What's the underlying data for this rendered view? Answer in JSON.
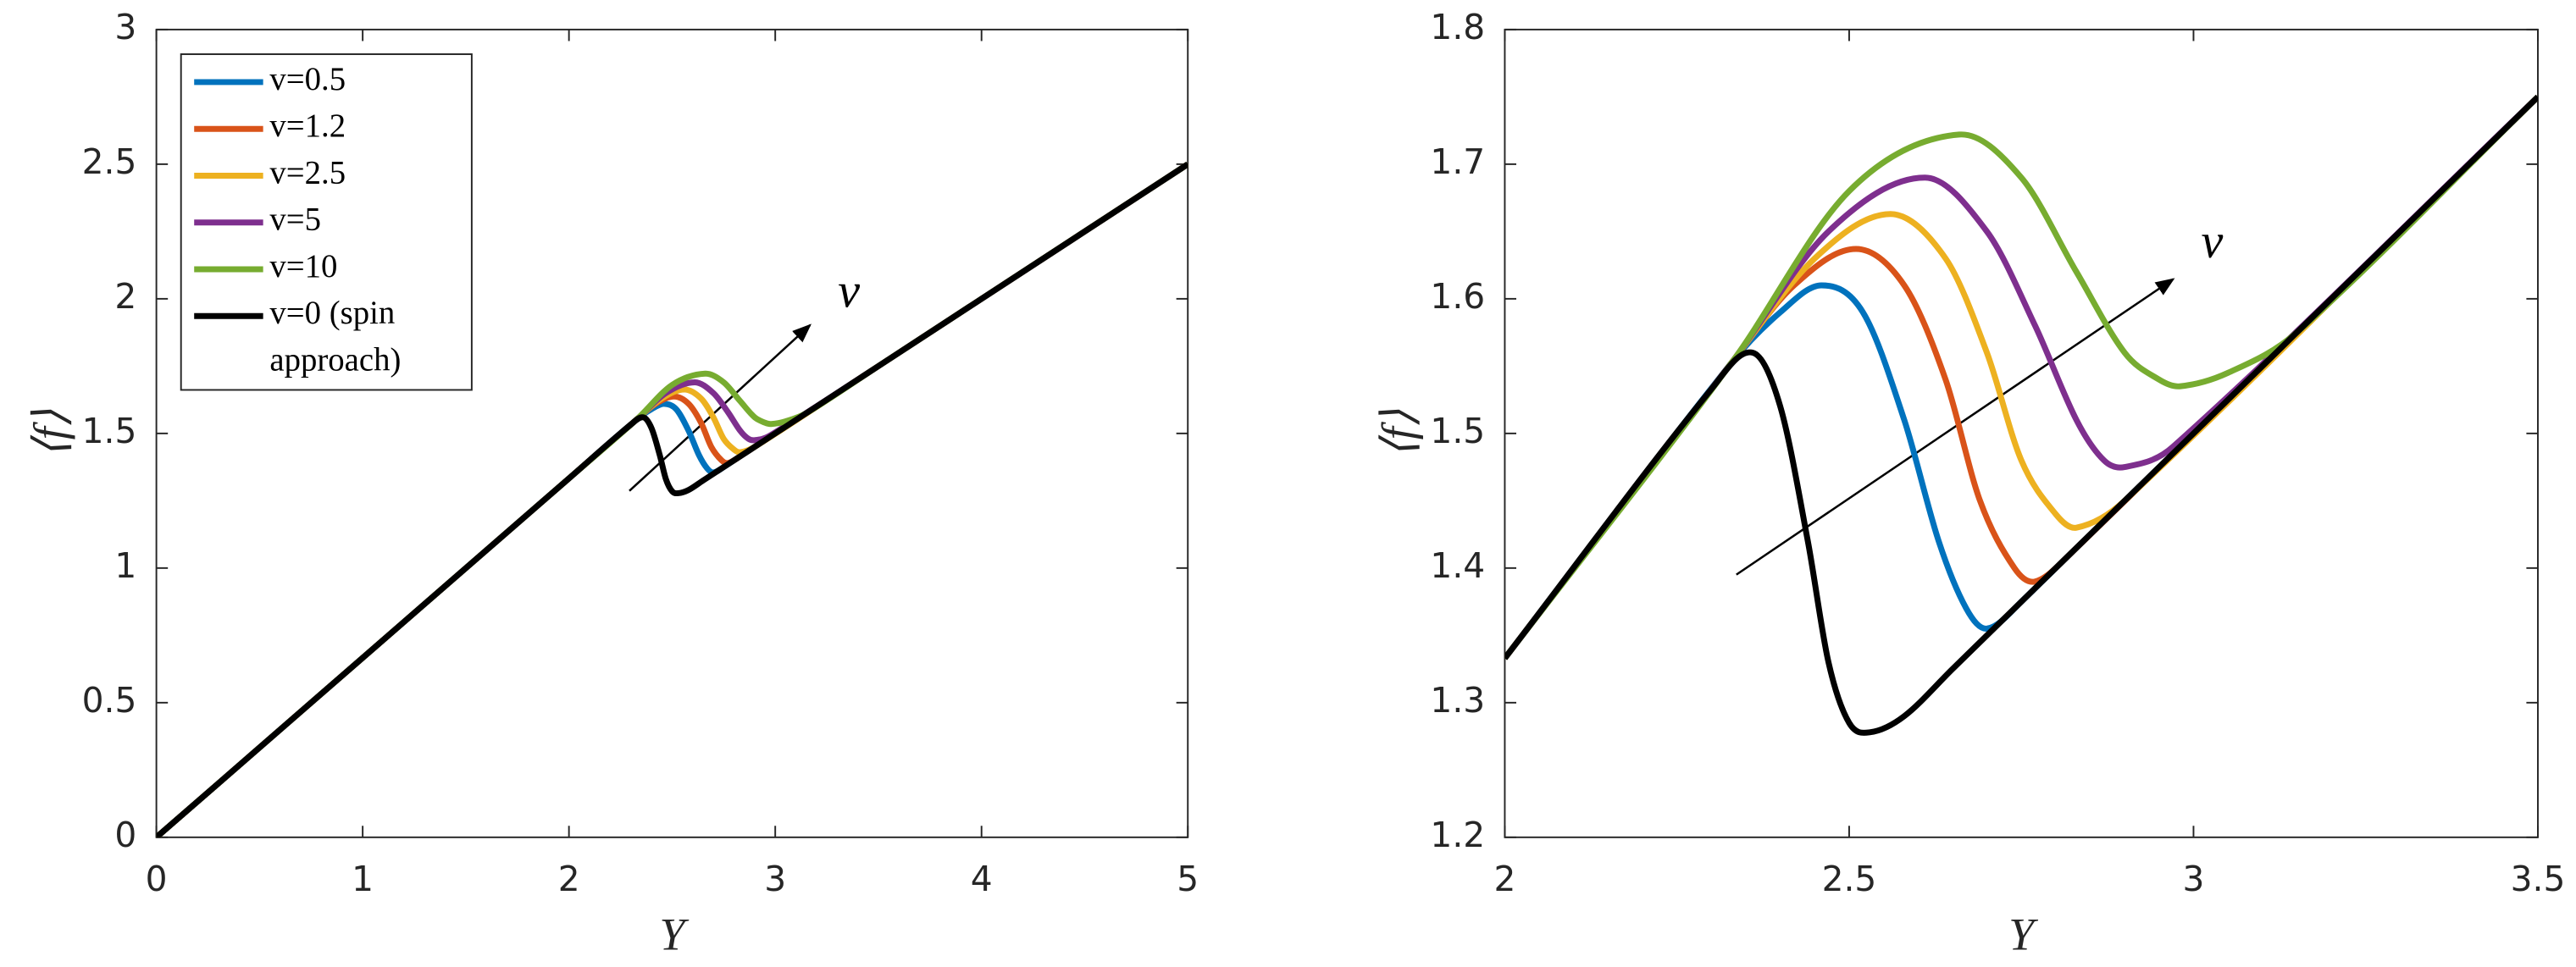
{
  "chart_data": [
    {
      "type": "line",
      "xlabel": "Y",
      "ylabel": "⟨f⟩",
      "xlim": [
        0,
        5
      ],
      "ylim": [
        0,
        3
      ],
      "xticks": [
        0,
        1,
        2,
        3,
        4,
        5
      ],
      "yticks": [
        0,
        0.5,
        1,
        1.5,
        2,
        2.5,
        3
      ],
      "legend": "upper left",
      "annotation": "v",
      "series": [
        {
          "name": "v=0.5",
          "color": "#0072BD",
          "x": [
            0,
            2.0,
            2.33,
            2.4,
            2.46,
            2.52,
            2.58,
            2.63,
            2.67,
            2.7,
            2.75,
            3.5,
            5
          ],
          "values": [
            0,
            1.333,
            1.553,
            1.59,
            1.61,
            1.59,
            1.51,
            1.42,
            1.37,
            1.355,
            1.375,
            1.75,
            2.5
          ]
        },
        {
          "name": "v=1.2",
          "color": "#D95319",
          "x": [
            0,
            2.0,
            2.33,
            2.42,
            2.51,
            2.58,
            2.64,
            2.69,
            2.74,
            2.77,
            2.82,
            3.5,
            5
          ],
          "values": [
            0,
            1.333,
            1.553,
            1.61,
            1.637,
            1.61,
            1.54,
            1.45,
            1.4,
            1.39,
            1.41,
            1.75,
            2.5
          ]
        },
        {
          "name": "v=2.5",
          "color": "#EDB120",
          "x": [
            0,
            2.0,
            2.33,
            2.45,
            2.56,
            2.64,
            2.7,
            2.75,
            2.8,
            2.83,
            2.9,
            3.5,
            5
          ],
          "values": [
            0,
            1.333,
            1.553,
            1.63,
            1.663,
            1.63,
            1.56,
            1.48,
            1.44,
            1.43,
            1.45,
            1.75,
            2.5
          ]
        },
        {
          "name": "v=5",
          "color": "#7E2F8E",
          "x": [
            0,
            2.0,
            2.33,
            2.47,
            2.61,
            2.7,
            2.77,
            2.83,
            2.87,
            2.9,
            2.97,
            3.5,
            5
          ],
          "values": [
            0,
            1.333,
            1.553,
            1.65,
            1.69,
            1.65,
            1.58,
            1.51,
            1.48,
            1.475,
            1.49,
            1.75,
            2.5
          ]
        },
        {
          "name": "v=10",
          "color": "#77AC30",
          "x": [
            0,
            2.0,
            2.33,
            2.5,
            2.66,
            2.75,
            2.83,
            2.9,
            2.95,
            2.98,
            3.05,
            3.15,
            3.5,
            5
          ],
          "values": [
            0,
            1.333,
            1.553,
            1.68,
            1.722,
            1.69,
            1.62,
            1.56,
            1.54,
            1.535,
            1.545,
            1.575,
            1.75,
            2.5
          ]
        },
        {
          "name": "v=0 (spin approach)",
          "color": "#000000",
          "x": [
            0,
            2.0,
            2.3,
            2.36,
            2.4,
            2.44,
            2.47,
            2.5,
            2.53,
            2.58,
            2.65,
            2.75,
            3.5,
            5
          ],
          "values": [
            0,
            1.333,
            1.533,
            1.56,
            1.52,
            1.42,
            1.33,
            1.285,
            1.278,
            1.29,
            1.325,
            1.375,
            1.75,
            2.5
          ]
        }
      ]
    },
    {
      "type": "line",
      "xlabel": "Y",
      "ylabel": "⟨f⟩",
      "xlim": [
        2,
        3.5
      ],
      "ylim": [
        1.2,
        1.8
      ],
      "xticks": [
        2,
        2.5,
        3,
        3.5
      ],
      "yticks": [
        1.2,
        1.3,
        1.4,
        1.5,
        1.6,
        1.7,
        1.8
      ],
      "annotation": "v",
      "series": [
        {
          "color": "#0072BD",
          "x": [
            2.0,
            2.33,
            2.4,
            2.46,
            2.52,
            2.58,
            2.63,
            2.67,
            2.7,
            2.75,
            3.5
          ],
          "values": [
            1.333,
            1.553,
            1.59,
            1.61,
            1.59,
            1.51,
            1.42,
            1.37,
            1.355,
            1.375,
            1.75
          ]
        },
        {
          "color": "#D95319",
          "x": [
            2.0,
            2.33,
            2.42,
            2.51,
            2.58,
            2.64,
            2.69,
            2.74,
            2.77,
            2.82,
            3.5
          ],
          "values": [
            1.333,
            1.553,
            1.61,
            1.637,
            1.61,
            1.54,
            1.45,
            1.4,
            1.39,
            1.41,
            1.75
          ]
        },
        {
          "color": "#EDB120",
          "x": [
            2.0,
            2.33,
            2.45,
            2.56,
            2.64,
            2.7,
            2.75,
            2.8,
            2.83,
            2.9,
            3.5
          ],
          "values": [
            1.333,
            1.553,
            1.63,
            1.663,
            1.63,
            1.56,
            1.48,
            1.44,
            1.43,
            1.45,
            1.75
          ]
        },
        {
          "color": "#7E2F8E",
          "x": [
            2.0,
            2.33,
            2.47,
            2.61,
            2.7,
            2.77,
            2.83,
            2.87,
            2.9,
            2.97,
            3.5
          ],
          "values": [
            1.333,
            1.553,
            1.65,
            1.69,
            1.65,
            1.58,
            1.51,
            1.48,
            1.475,
            1.49,
            1.75
          ]
        },
        {
          "color": "#77AC30",
          "x": [
            2.0,
            2.33,
            2.5,
            2.66,
            2.75,
            2.83,
            2.9,
            2.95,
            2.98,
            3.05,
            3.15,
            3.5
          ],
          "values": [
            1.333,
            1.553,
            1.68,
            1.722,
            1.69,
            1.62,
            1.56,
            1.54,
            1.535,
            1.545,
            1.575,
            1.75
          ]
        },
        {
          "color": "#000000",
          "x": [
            2.0,
            2.3,
            2.36,
            2.4,
            2.44,
            2.47,
            2.5,
            2.53,
            2.58,
            2.65,
            2.75,
            3.5
          ],
          "values": [
            1.333,
            1.533,
            1.56,
            1.52,
            1.42,
            1.33,
            1.285,
            1.278,
            1.29,
            1.325,
            1.375,
            1.75
          ]
        }
      ]
    }
  ]
}
